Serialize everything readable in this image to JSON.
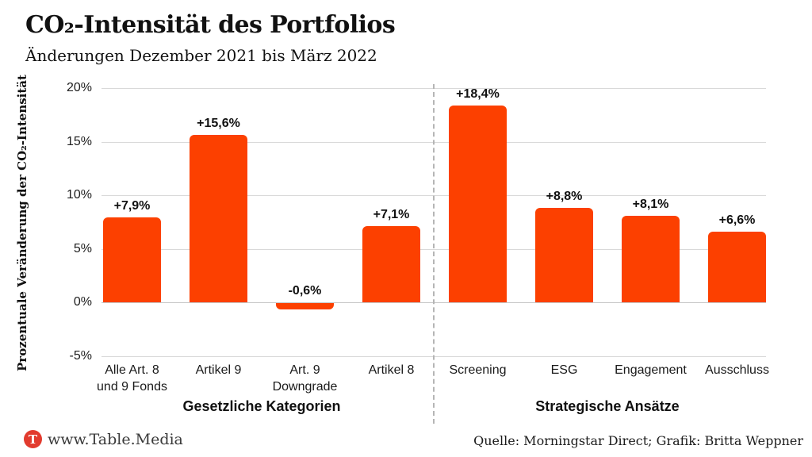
{
  "header": {
    "title": "CO₂-Intensität des Portfolios",
    "subtitle": "Änderungen Dezember 2021 bis März 2022"
  },
  "chart_data": {
    "type": "bar",
    "title": "CO₂-Intensität des Portfolios",
    "subtitle": "Änderungen Dezember 2021 bis März 2022",
    "ylabel": "Prozentuale Veränderung der CO₂-Intensität",
    "xlabel": "",
    "ylim": [
      -5,
      20
    ],
    "grid": "horizontal",
    "bar_color": "#FC4000",
    "yticks": [
      {
        "value": 20,
        "label": "20%"
      },
      {
        "value": 15,
        "label": "15%"
      },
      {
        "value": 10,
        "label": "10%"
      },
      {
        "value": 5,
        "label": "5%"
      },
      {
        "value": 0,
        "label": "0%"
      },
      {
        "value": -5,
        "label": "-5%"
      }
    ],
    "groups": [
      {
        "label": "Gesetzliche Kategorien",
        "bars": [
          {
            "category": "Alle Art. 8\nund 9 Fonds",
            "value": 7.9,
            "value_label": "+7,9%"
          },
          {
            "category": "Artikel 9",
            "value": 15.6,
            "value_label": "+15,6%"
          },
          {
            "category": "Art. 9\nDowngrade",
            "value": -0.6,
            "value_label": "-0,6%"
          },
          {
            "category": "Artikel 8",
            "value": 7.1,
            "value_label": "+7,1%"
          }
        ]
      },
      {
        "label": "Strategische Ansätze",
        "bars": [
          {
            "category": "Screening",
            "value": 18.4,
            "value_label": "+18,4%"
          },
          {
            "category": "ESG",
            "value": 8.8,
            "value_label": "+8,8%"
          },
          {
            "category": "Engagement",
            "value": 8.1,
            "value_label": "+8,1%"
          },
          {
            "category": "Ausschluss",
            "value": 6.6,
            "value_label": "+6,6%"
          }
        ]
      }
    ]
  },
  "footer": {
    "logo_letter": "T",
    "logo_color": "#E23B2E",
    "brand": "www.Table.Media",
    "source": "Quelle: Morningstar Direct; Grafik: Britta Weppner"
  }
}
